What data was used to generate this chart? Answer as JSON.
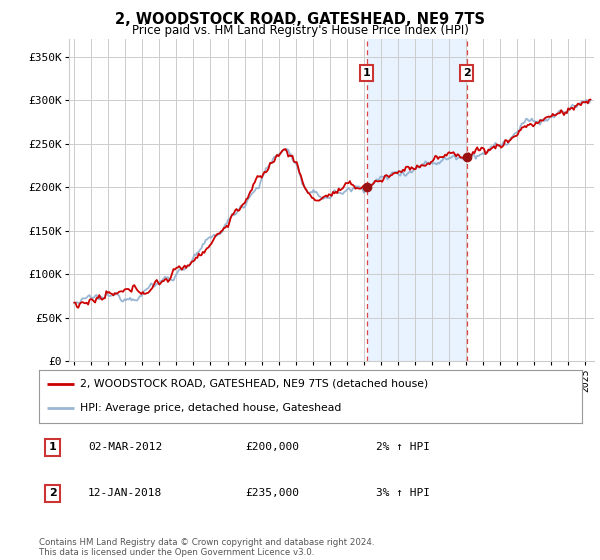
{
  "title": "2, WOODSTOCK ROAD, GATESHEAD, NE9 7TS",
  "subtitle": "Price paid vs. HM Land Registry's House Price Index (HPI)",
  "ylabel_ticks": [
    "£0",
    "£50K",
    "£100K",
    "£150K",
    "£200K",
    "£250K",
    "£300K",
    "£350K"
  ],
  "ytick_values": [
    0,
    50000,
    100000,
    150000,
    200000,
    250000,
    300000,
    350000
  ],
  "ylim": [
    0,
    370000
  ],
  "xlim_start": 1994.7,
  "xlim_end": 2025.5,
  "sale1_date": 2012.17,
  "sale1_price": 200000,
  "sale1_label": "1",
  "sale1_date_str": "02-MAR-2012",
  "sale1_price_str": "£200,000",
  "sale1_hpi_str": "2% ↑ HPI",
  "sale2_date": 2018.04,
  "sale2_price": 235000,
  "sale2_label": "2",
  "sale2_date_str": "12-JAN-2018",
  "sale2_price_str": "£235,000",
  "sale2_hpi_str": "3% ↑ HPI",
  "line1_label": "2, WOODSTOCK ROAD, GATESHEAD, NE9 7TS (detached house)",
  "line2_label": "HPI: Average price, detached house, Gateshead",
  "line1_color": "#cc0000",
  "line2_color": "#88aacccc",
  "line2_color_solid": "#88aacc",
  "vline_color": "#dd4444",
  "dot_color": "#991111",
  "shade_color": "#ddeeff",
  "footnote": "Contains HM Land Registry data © Crown copyright and database right 2024.\nThis data is licensed under the Open Government Licence v3.0.",
  "background_color": "#ffffff",
  "grid_color": "#cccccc",
  "spine_color": "#cccccc"
}
